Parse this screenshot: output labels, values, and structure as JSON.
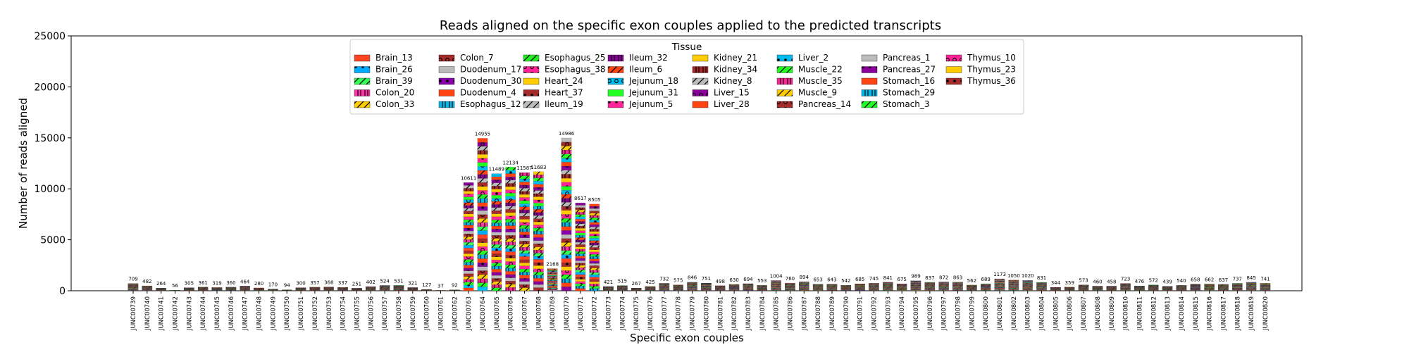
{
  "chart_data": {
    "type": "bar",
    "stacked": true,
    "title": "Reads aligned on the specific exon couples applied to the predicted transcripts",
    "xlabel": "Specific exon couples",
    "ylabel": "Number of reads aligned",
    "ylim": [
      0,
      25000
    ],
    "yticks": [
      0,
      5000,
      10000,
      15000,
      20000,
      25000
    ],
    "legend_title": "Tissue",
    "legend_position": "top-center",
    "categories": [
      "JUNC00739",
      "JUNC00740",
      "JUNC00741",
      "JUNC00742",
      "JUNC00743",
      "JUNC00744",
      "JUNC00745",
      "JUNC00746",
      "JUNC00747",
      "JUNC00748",
      "JUNC00749",
      "JUNC00750",
      "JUNC00751",
      "JUNC00752",
      "JUNC00753",
      "JUNC00754",
      "JUNC00755",
      "JUNC00756",
      "JUNC00757",
      "JUNC00758",
      "JUNC00759",
      "JUNC00760",
      "JUNC00761",
      "JUNC00762",
      "JUNC00763",
      "JUNC00764",
      "JUNC00765",
      "JUNC00766",
      "JUNC00767",
      "JUNC00768",
      "JUNC00769",
      "JUNC00770",
      "JUNC00771",
      "JUNC00772",
      "JUNC00773",
      "JUNC00774",
      "JUNC00775",
      "JUNC00776",
      "JUNC00777",
      "JUNC00778",
      "JUNC00779",
      "JUNC00780",
      "JUNC00781",
      "JUNC00782",
      "JUNC00783",
      "JUNC00784",
      "JUNC00785",
      "JUNC00786",
      "JUNC00787",
      "JUNC00788",
      "JUNC00789",
      "JUNC00790",
      "JUNC00791",
      "JUNC00792",
      "JUNC00793",
      "JUNC00794",
      "JUNC00795",
      "JUNC00796",
      "JUNC00797",
      "JUNC00798",
      "JUNC00799",
      "JUNC00800",
      "JUNC00801",
      "JUNC00802",
      "JUNC00803",
      "JUNC00804",
      "JUNC00805",
      "JUNC00806",
      "JUNC00807",
      "JUNC00808",
      "JUNC00809",
      "JUNC00810",
      "JUNC00811",
      "JUNC00812",
      "JUNC00813",
      "JUNC00814",
      "JUNC00815",
      "JUNC00816",
      "JUNC00817",
      "JUNC00818",
      "JUNC00819",
      "JUNC00820"
    ],
    "totals": [
      709,
      482,
      264,
      56,
      305,
      361,
      319,
      360,
      464,
      280,
      170,
      94,
      300,
      357,
      368,
      337,
      251,
      402,
      524,
      531,
      321,
      127,
      37,
      92,
      10611,
      14955,
      11489,
      12134,
      11587,
      11683,
      2168,
      14986,
      8617,
      8505,
      421,
      515,
      267,
      425,
      732,
      575,
      846,
      751,
      498,
      630,
      694,
      553,
      1004,
      760,
      894,
      653,
      643,
      542,
      685,
      745,
      841,
      675,
      989,
      837,
      872,
      863,
      562,
      689,
      1173,
      1050,
      1020,
      831,
      344,
      359,
      573,
      460,
      458,
      723,
      476,
      572,
      439,
      540,
      658,
      662,
      637,
      737,
      845,
      741
    ],
    "total_labels": [
      "709",
      "482",
      "264",
      "56",
      "305",
      "361",
      "319",
      "360",
      "464",
      "280",
      "170",
      "94",
      "300",
      "357",
      "368",
      "337",
      "251",
      "402",
      "524",
      "531",
      "321",
      "127",
      "37",
      "92",
      "10611",
      "14955",
      "11489",
      "12134",
      "11587",
      "11683",
      "2168",
      "14986",
      "8617",
      "8505",
      "421",
      "515",
      "267",
      "425",
      "732",
      "575",
      "846",
      "751",
      "498",
      "630",
      "694",
      "553",
      "1004",
      "760",
      "894",
      "653",
      "643",
      "542",
      "685",
      "745",
      "841",
      "675",
      "989",
      "837",
      "872",
      "863",
      "562",
      "689",
      "1173",
      "1050",
      "1020",
      "831",
      "344",
      "359",
      "573",
      "460",
      "458",
      "723",
      "476",
      "572",
      "439",
      "540",
      "658",
      "662",
      "637",
      "737",
      "845",
      "741"
    ],
    "series": [
      {
        "name": "Brain_13",
        "color": "#ff4422",
        "hatch": ""
      },
      {
        "name": "Brain_26",
        "color": "#00aaff",
        "hatch": "dot"
      },
      {
        "name": "Brain_39",
        "color": "#33ff55",
        "hatch": "slash"
      },
      {
        "name": "Colon_20",
        "color": "#ff33aa",
        "hatch": "bars"
      },
      {
        "name": "Colon_33",
        "color": "#ffcc00",
        "hatch": "slash"
      },
      {
        "name": "Colon_7",
        "color": "#a52a2a",
        "hatch": "ring"
      },
      {
        "name": "Duodenum_17",
        "color": "#bbbbbb",
        "hatch": ""
      },
      {
        "name": "Duodenum_30",
        "color": "#8800aa",
        "hatch": "dot"
      },
      {
        "name": "Duodenum_4",
        "color": "#ff4411",
        "hatch": ""
      },
      {
        "name": "Esophagus_12",
        "color": "#00bbee",
        "hatch": "bars"
      },
      {
        "name": "Esophagus_25",
        "color": "#22ee22",
        "hatch": "slash"
      },
      {
        "name": "Esophagus_38",
        "color": "#ff2299",
        "hatch": "ring"
      },
      {
        "name": "Heart_24",
        "color": "#ffcc00",
        "hatch": ""
      },
      {
        "name": "Heart_37",
        "color": "#a52a2a",
        "hatch": "dot"
      },
      {
        "name": "Ileum_19",
        "color": "#bbbbbb",
        "hatch": "slash"
      },
      {
        "name": "Ileum_32",
        "color": "#880099",
        "hatch": "bars"
      },
      {
        "name": "Ileum_6",
        "color": "#ff4411",
        "hatch": "slash"
      },
      {
        "name": "Jejunum_18",
        "color": "#00bbee",
        "hatch": "ring"
      },
      {
        "name": "Jejunum_31",
        "color": "#22ff22",
        "hatch": ""
      },
      {
        "name": "Jejunum_5",
        "color": "#ff2299",
        "hatch": "dot"
      },
      {
        "name": "Kidney_21",
        "color": "#ffcc00",
        "hatch": ""
      },
      {
        "name": "Kidney_34",
        "color": "#a52a2a",
        "hatch": "bars"
      },
      {
        "name": "Kidney_8",
        "color": "#bbbbbb",
        "hatch": "slash"
      },
      {
        "name": "Liver_15",
        "color": "#880099",
        "hatch": "ring"
      },
      {
        "name": "Liver_28",
        "color": "#ff4411",
        "hatch": ""
      },
      {
        "name": "Liver_2",
        "color": "#00bbee",
        "hatch": "dot"
      },
      {
        "name": "Muscle_22",
        "color": "#22ff22",
        "hatch": "slash"
      },
      {
        "name": "Muscle_35",
        "color": "#ff2299",
        "hatch": "bars"
      },
      {
        "name": "Muscle_9",
        "color": "#ffcc00",
        "hatch": "slash"
      },
      {
        "name": "Pancreas_14",
        "color": "#a52a2a",
        "hatch": "ring"
      },
      {
        "name": "Pancreas_1",
        "color": "#bbbbbb",
        "hatch": ""
      },
      {
        "name": "Pancreas_27",
        "color": "#880099",
        "hatch": "dot"
      },
      {
        "name": "Stomach_16",
        "color": "#ff4411",
        "hatch": ""
      },
      {
        "name": "Stomach_29",
        "color": "#00bbee",
        "hatch": "bars"
      },
      {
        "name": "Stomach_3",
        "color": "#22ff22",
        "hatch": "slash"
      },
      {
        "name": "Thymus_10",
        "color": "#ff2299",
        "hatch": "ring"
      },
      {
        "name": "Thymus_23",
        "color": "#ffcc00",
        "hatch": ""
      },
      {
        "name": "Thymus_36",
        "color": "#a52a2a",
        "hatch": "dot"
      }
    ]
  }
}
